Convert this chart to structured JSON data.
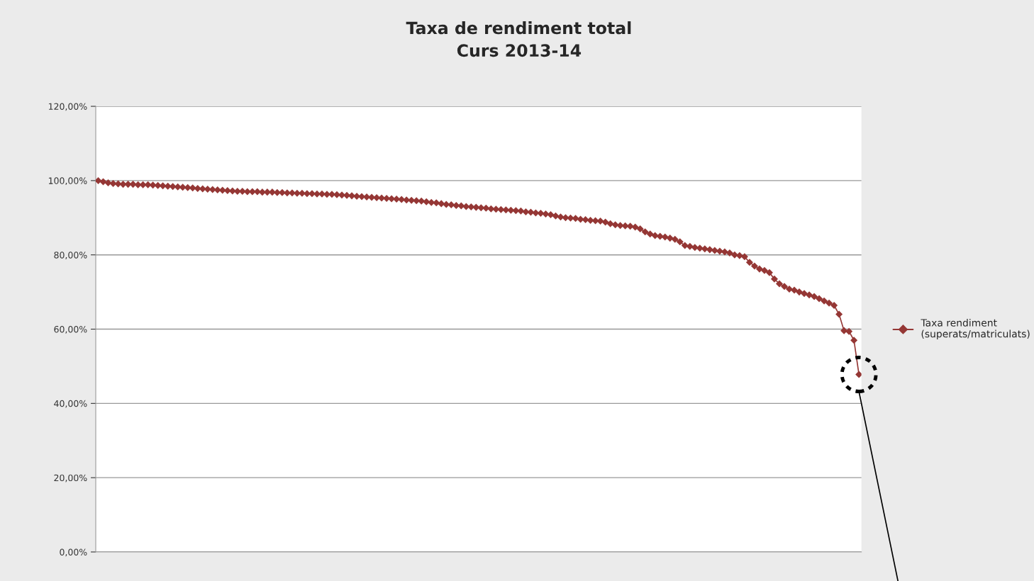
{
  "chart_data": {
    "type": "line",
    "title": "Taxa de rendiment total\nCurs 2013-14",
    "categories": [
      null,
      null,
      null,
      null,
      null,
      null,
      null,
      null,
      null,
      null,
      null,
      null,
      null,
      null,
      null,
      null,
      null,
      null,
      null,
      null,
      null,
      null,
      null,
      null,
      null,
      null,
      null,
      null,
      null,
      null,
      null,
      null,
      null,
      null,
      null,
      null,
      null,
      null,
      null,
      null,
      null,
      null,
      null,
      null,
      null,
      null,
      null,
      null,
      null,
      null,
      null,
      null,
      null,
      null,
      null,
      null,
      null,
      null,
      null,
      null,
      null,
      null,
      null,
      null,
      null,
      null,
      null,
      null,
      null,
      null,
      null,
      null,
      null,
      null,
      null,
      null,
      null,
      null,
      null,
      null,
      null,
      null,
      null,
      null,
      null,
      null,
      null,
      null,
      null,
      null,
      null,
      null,
      null,
      null,
      null,
      null,
      null,
      null,
      null,
      null,
      null,
      null,
      null,
      null,
      null,
      null,
      null,
      null,
      null,
      null,
      null,
      null,
      null,
      null,
      null,
      null,
      null,
      null,
      null,
      null,
      null,
      null,
      null,
      null,
      null,
      null,
      null,
      null,
      null,
      null,
      null,
      null,
      null,
      null,
      null,
      null,
      null,
      null,
      null,
      null,
      null,
      null,
      null,
      null,
      null,
      null,
      null,
      null,
      null,
      null,
      null,
      null,
      null,
      null
    ],
    "series": [
      {
        "name": "Taxa rendiment\n(superats/matriculats)",
        "color": "#953735",
        "values": [
          100,
          99.7,
          99.4,
          99.2,
          99.1,
          99.0,
          99.0,
          99.0,
          98.9,
          98.9,
          98.9,
          98.8,
          98.7,
          98.6,
          98.5,
          98.4,
          98.3,
          98.2,
          98.1,
          98.0,
          97.9,
          97.8,
          97.7,
          97.6,
          97.5,
          97.4,
          97.3,
          97.2,
          97.1,
          97.1,
          97.0,
          97.0,
          97.0,
          96.9,
          96.9,
          96.9,
          96.8,
          96.8,
          96.7,
          96.7,
          96.6,
          96.6,
          96.5,
          96.5,
          96.4,
          96.4,
          96.3,
          96.3,
          96.2,
          96.1,
          96.0,
          95.9,
          95.8,
          95.7,
          95.6,
          95.5,
          95.4,
          95.3,
          95.2,
          95.1,
          95.0,
          94.9,
          94.8,
          94.7,
          94.6,
          94.5,
          94.3,
          94.1,
          94.0,
          93.8,
          93.6,
          93.5,
          93.3,
          93.2,
          93.0,
          92.9,
          92.8,
          92.7,
          92.6,
          92.4,
          92.3,
          92.2,
          92.1,
          92.0,
          91.9,
          91.8,
          91.6,
          91.5,
          91.3,
          91.2,
          91.0,
          90.8,
          90.5,
          90.2,
          90.0,
          89.9,
          89.8,
          89.6,
          89.5,
          89.3,
          89.2,
          89.1,
          88.8,
          88.4,
          88.1,
          87.9,
          87.8,
          87.7,
          87.5,
          87.0,
          86.2,
          85.6,
          85.2,
          85.0,
          84.8,
          84.5,
          84.2,
          83.5,
          82.5,
          82.3,
          82.0,
          81.8,
          81.6,
          81.4,
          81.2,
          81.0,
          80.8,
          80.5,
          80.0,
          79.8,
          79.5,
          78.0,
          77.0,
          76.2,
          75.8,
          75.2,
          73.5,
          72.2,
          71.5,
          70.8,
          70.5,
          70.0,
          69.6,
          69.2,
          68.8,
          68.2,
          67.6,
          67.0,
          66.4,
          64.0,
          59.6,
          59.4,
          57.0,
          47.8
        ]
      }
    ],
    "ylim": [
      0,
      120
    ],
    "yticks": [
      {
        "value": 0,
        "label": "0,00%"
      },
      {
        "value": 20,
        "label": "20,00%"
      },
      {
        "value": 40,
        "label": "40,00%"
      },
      {
        "value": 60,
        "label": "60,00%"
      },
      {
        "value": 80,
        "label": "80,00%"
      },
      {
        "value": 100,
        "label": "100,00%"
      },
      {
        "value": 120,
        "label": "120,00%"
      }
    ],
    "tick_labels": "y",
    "grid": "y",
    "legend": "right",
    "marker": "diamond",
    "line_style": "solid"
  }
}
